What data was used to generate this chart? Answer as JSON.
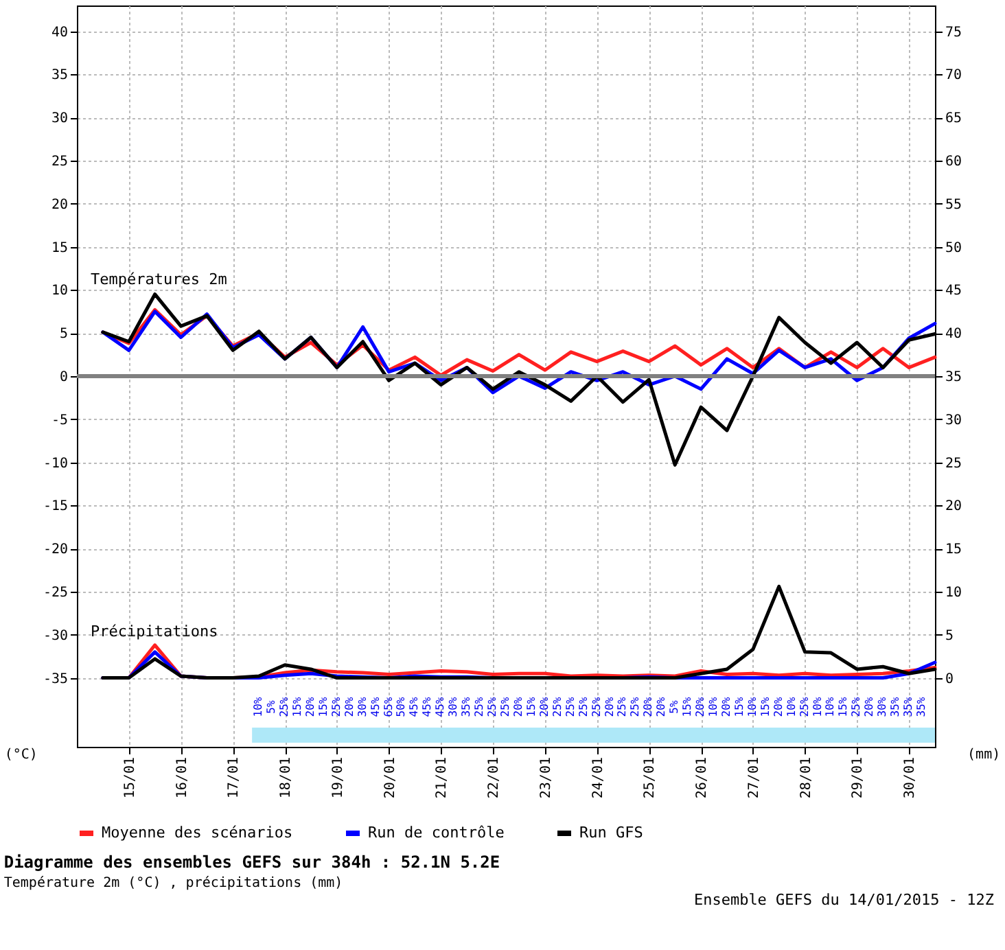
{
  "chart_data": {
    "type": "line",
    "title": "Diagramme des ensembles GEFS sur 384h : 52.1N 5.2E",
    "subtitle": "Température 2m (°C) , précipitations (mm)",
    "ylabel": "(°C)",
    "y2label": "(mm)",
    "x": [
      "2015-01-14T12:00",
      "2015-01-15T00:00",
      "2015-01-15T12:00",
      "2015-01-16T00:00",
      "2015-01-16T12:00",
      "2015-01-17T00:00",
      "2015-01-17T12:00",
      "2015-01-18T00:00",
      "2015-01-18T12:00",
      "2015-01-19T00:00",
      "2015-01-19T12:00",
      "2015-01-20T00:00",
      "2015-01-20T12:00",
      "2015-01-21T00:00",
      "2015-01-21T12:00",
      "2015-01-22T00:00",
      "2015-01-22T12:00",
      "2015-01-23T00:00",
      "2015-01-23T12:00",
      "2015-01-24T00:00",
      "2015-01-24T12:00",
      "2015-01-25T00:00",
      "2015-01-25T12:00",
      "2015-01-26T00:00",
      "2015-01-26T12:00",
      "2015-01-27T00:00",
      "2015-01-27T12:00",
      "2015-01-28T00:00",
      "2015-01-28T12:00",
      "2015-01-29T00:00",
      "2015-01-29T12:00",
      "2015-01-30T00:00",
      "2015-01-30T12:00"
    ],
    "xlim": [
      "2015-01-14",
      "2015-01-30T12:00"
    ],
    "xticks": [
      {
        "value": "2015-01-15",
        "label": "15/01"
      },
      {
        "value": "2015-01-16",
        "label": "16/01"
      },
      {
        "value": "2015-01-17",
        "label": "17/01"
      },
      {
        "value": "2015-01-18",
        "label": "18/01"
      },
      {
        "value": "2015-01-19",
        "label": "19/01"
      },
      {
        "value": "2015-01-20",
        "label": "20/01"
      },
      {
        "value": "2015-01-21",
        "label": "21/01"
      },
      {
        "value": "2015-01-22",
        "label": "22/01"
      },
      {
        "value": "2015-01-23",
        "label": "23/01"
      },
      {
        "value": "2015-01-24",
        "label": "24/01"
      },
      {
        "value": "2015-01-25",
        "label": "25/01"
      },
      {
        "value": "2015-01-26",
        "label": "26/01"
      },
      {
        "value": "2015-01-27",
        "label": "27/01"
      },
      {
        "value": "2015-01-28",
        "label": "28/01"
      },
      {
        "value": "2015-01-29",
        "label": "29/01"
      },
      {
        "value": "2015-01-30",
        "label": "30/01"
      }
    ],
    "ylim": [
      -43,
      43
    ],
    "yticks": [
      -35,
      -30,
      -25,
      -20,
      -15,
      -10,
      -5,
      0,
      5,
      10,
      15,
      20,
      25,
      30,
      35,
      40
    ],
    "y2lim": [
      -8,
      78
    ],
    "y2ticks": [
      0,
      5,
      10,
      15,
      20,
      25,
      30,
      35,
      40,
      45,
      50,
      55,
      60,
      65,
      70,
      75
    ],
    "series": [
      {
        "name": "Moyenne des scénarios",
        "color": "#ff2020",
        "values": [
          5.1,
          3.8,
          7.7,
          4.8,
          7.0,
          3.5,
          5.0,
          2.2,
          3.9,
          1.3,
          3.6,
          0.7,
          2.2,
          0.1,
          1.9,
          0.6,
          2.5,
          0.7,
          2.8,
          1.7,
          2.9,
          1.7,
          3.5,
          1.3,
          3.2,
          1.0,
          3.2,
          1.0,
          2.8,
          1.0,
          3.2,
          1.0,
          2.2
        ]
      },
      {
        "name": "Run de contrôle",
        "color": "#0000ff",
        "values": [
          5.1,
          3.0,
          7.5,
          4.5,
          7.2,
          3.3,
          4.8,
          2.0,
          4.5,
          1.0,
          5.7,
          0.5,
          1.5,
          -0.5,
          1.0,
          -1.9,
          0.0,
          -1.4,
          0.5,
          -0.5,
          0.5,
          -1.0,
          0.0,
          -1.5,
          2.0,
          0.3,
          3.0,
          1.0,
          2.0,
          -0.5,
          1.0,
          4.4,
          6.1
        ]
      },
      {
        "name": "Run GFS",
        "color": "#000000",
        "values": [
          5.1,
          4.0,
          9.5,
          5.8,
          7.0,
          3.0,
          5.2,
          2.0,
          4.5,
          1.0,
          4.0,
          -0.5,
          1.5,
          -1.0,
          1.0,
          -1.5,
          0.5,
          -1.0,
          -2.9,
          0.0,
          -3.0,
          -0.4,
          -10.3,
          -3.6,
          -6.3,
          0.0,
          6.8,
          3.9,
          1.5,
          3.9,
          1.0,
          4.2,
          4.9
        ]
      },
      {
        "color": "#ff2020",
        "axis": "y2",
        "values": [
          0,
          0,
          3.8,
          0.2,
          0,
          0,
          0.1,
          0.6,
          0.9,
          0.7,
          0.6,
          0.4,
          0.6,
          0.8,
          0.7,
          0.4,
          0.5,
          0.5,
          0.2,
          0.3,
          0.2,
          0.3,
          0.2,
          0.8,
          0.4,
          0.5,
          0.3,
          0.5,
          0.3,
          0.4,
          0.5,
          0.8,
          1.2
        ]
      },
      {
        "color": "#0000ff",
        "axis": "y2",
        "values": [
          0,
          0,
          3.0,
          0.2,
          0,
          0,
          0,
          0.3,
          0.5,
          0.2,
          0.1,
          0,
          0.2,
          0.1,
          0.1,
          0,
          0,
          0,
          0,
          0,
          0,
          0.1,
          0,
          0,
          0,
          0,
          0,
          0,
          0,
          0,
          0,
          0.5,
          1.8
        ]
      },
      {
        "color": "#000000",
        "axis": "y2",
        "values": [
          0,
          0,
          2.2,
          0.2,
          0,
          0,
          0.2,
          1.5,
          1.0,
          0,
          0,
          0,
          0,
          0,
          0,
          0,
          0,
          0,
          0,
          0,
          0,
          0,
          0,
          0.5,
          1.0,
          3.3,
          10.6,
          3.0,
          2.9,
          1.0,
          1.3,
          0.5,
          1.0
        ]
      }
    ],
    "ref_lines": [
      {
        "axis": "y",
        "value": 0,
        "color": "#808080"
      }
    ],
    "grid": true,
    "legend": "bottom",
    "annotations": [
      "Ensemble GEFS du 14/01/2015 - 12Z",
      "Températures 2m",
      "Précipitations",
      "10%",
      "5%",
      "25%",
      "15%",
      "20%",
      "15%",
      "25%",
      "20%",
      "30%",
      "45%",
      "65%",
      "50%",
      "45%",
      "45%",
      "45%",
      "30%",
      "35%",
      "25%",
      "25%",
      "25%",
      "20%",
      "15%",
      "20%",
      "25%",
      "25%",
      "25%",
      "25%",
      "20%",
      "25%",
      "25%",
      "20%",
      "20%",
      "5%",
      "15%",
      "20%",
      "10%",
      "20%",
      "15%",
      "10%",
      "15%",
      "20%",
      "10%",
      "25%",
      "10%",
      "10%",
      "15%",
      "25%",
      "20%",
      "30%",
      "35%",
      "35%",
      "35%"
    ]
  }
}
